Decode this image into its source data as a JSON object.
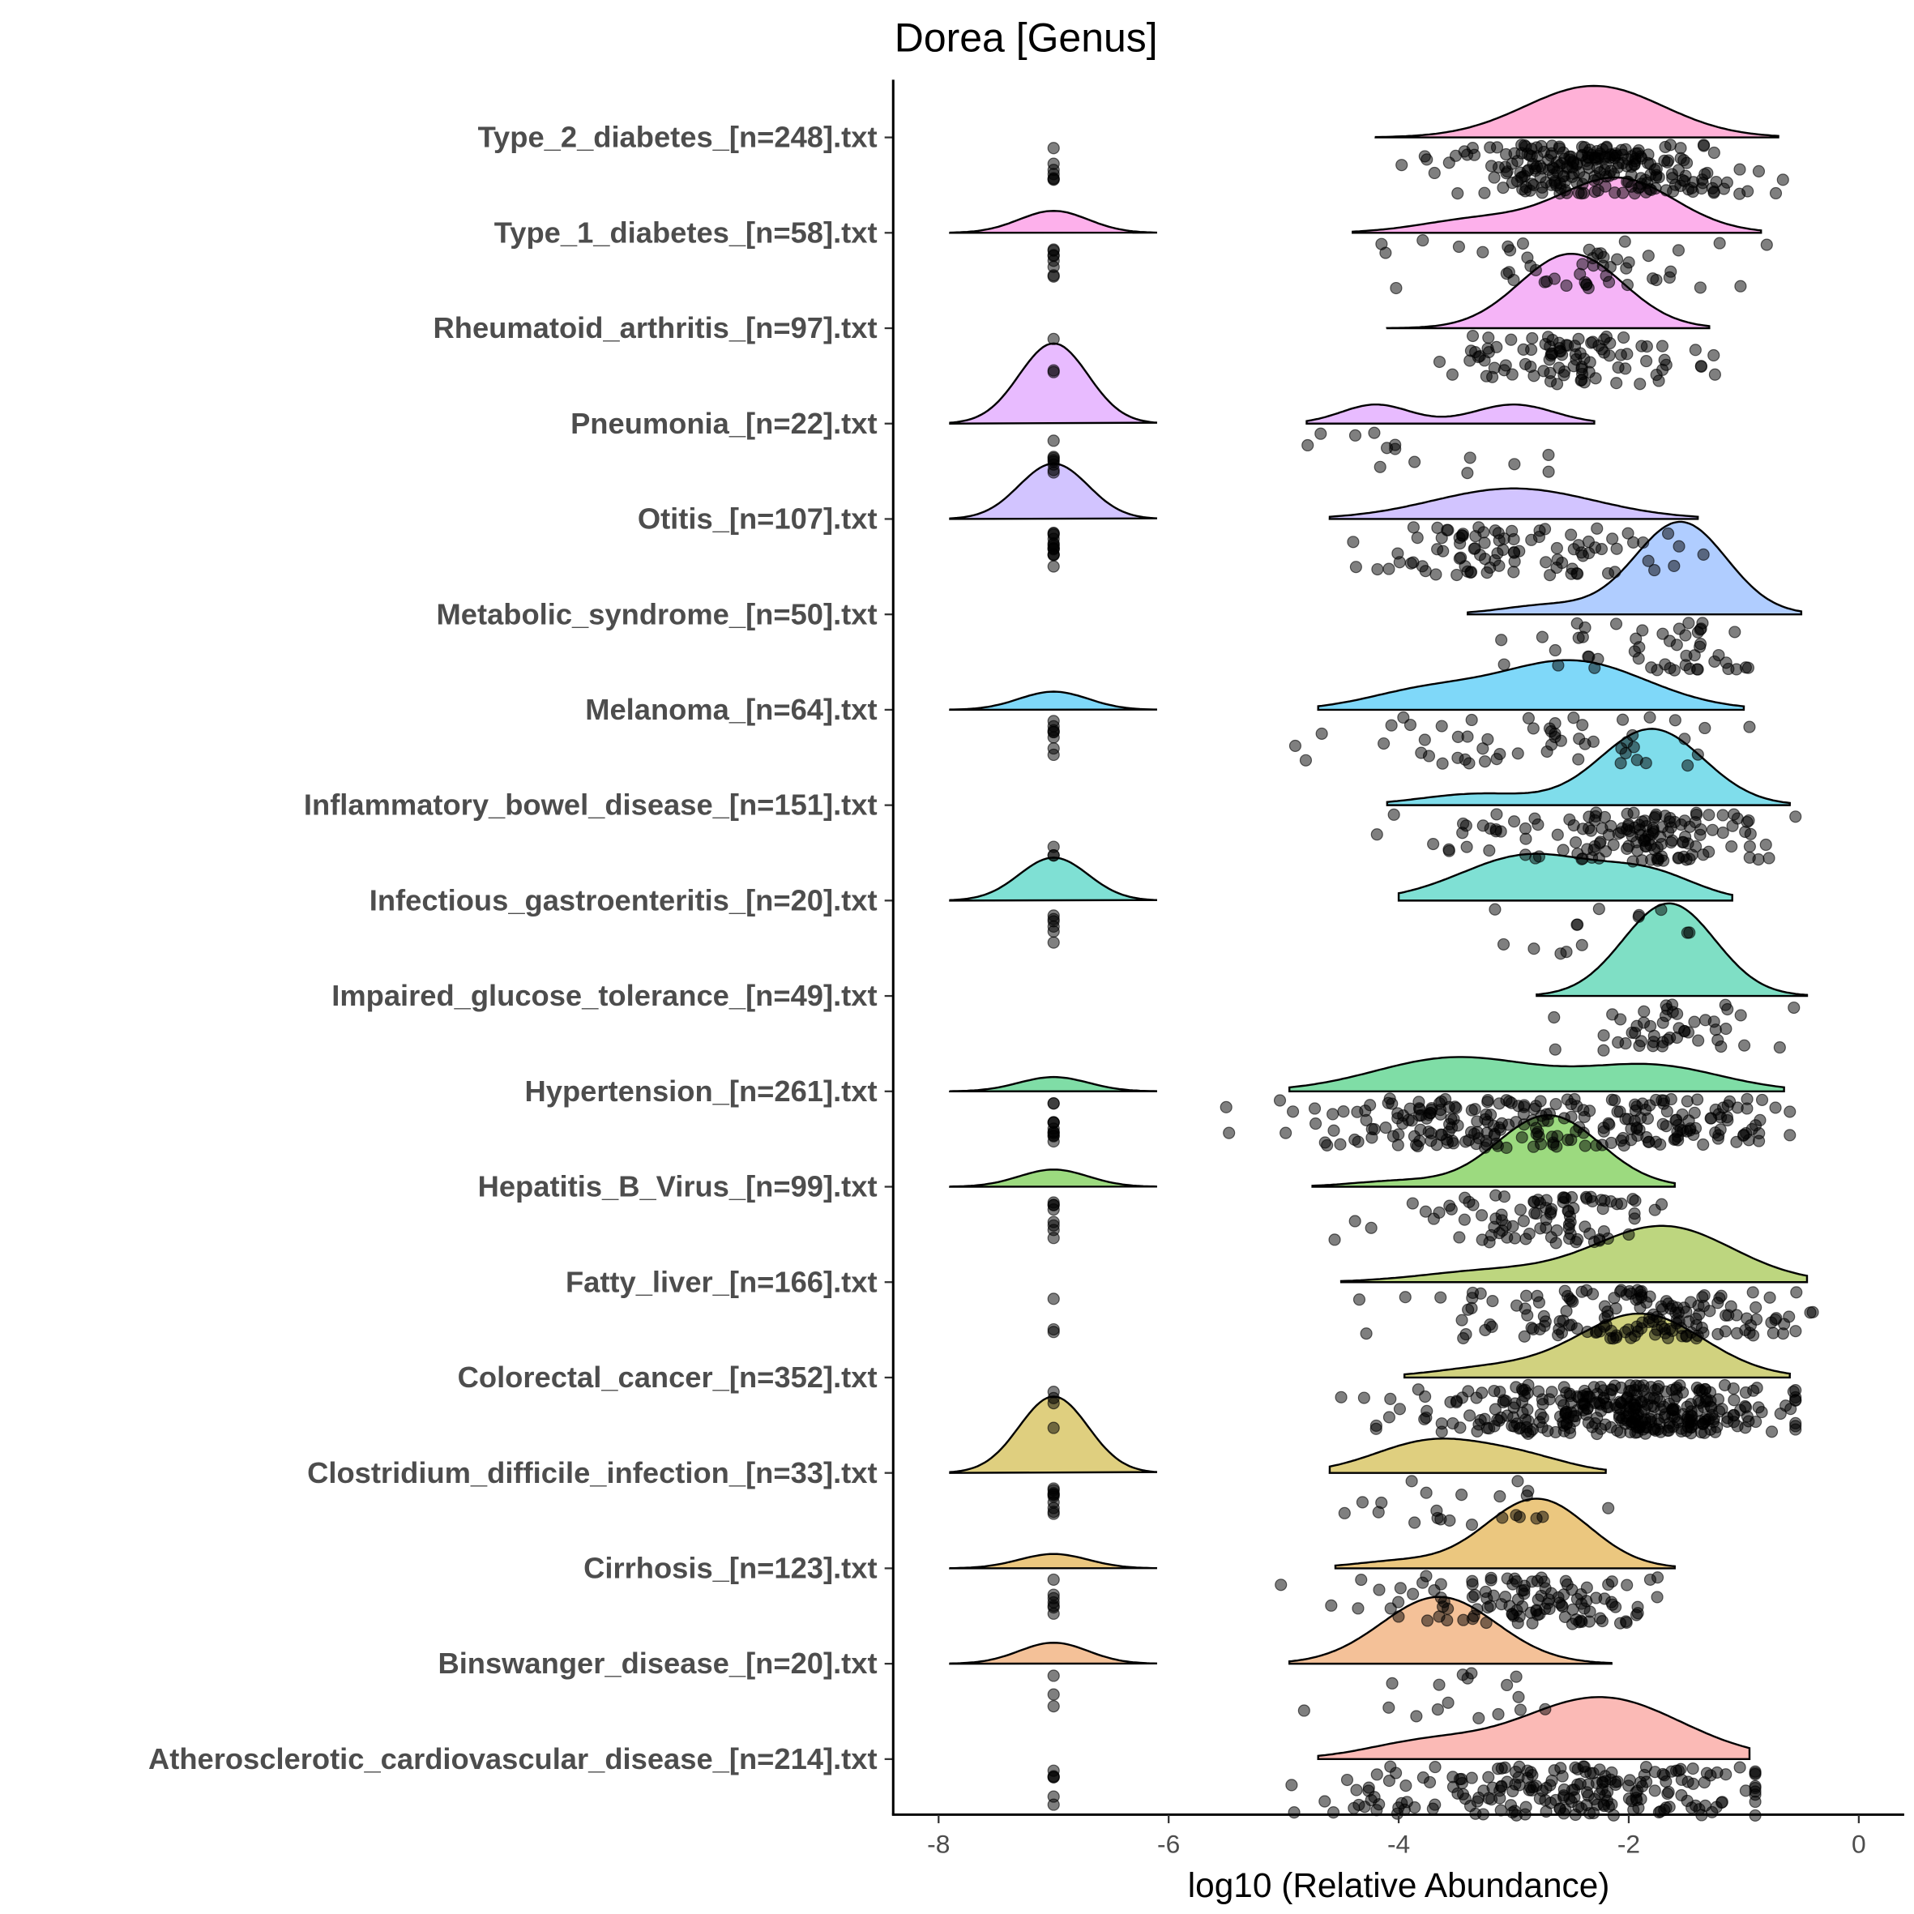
{
  "chart_data": {
    "type": "ridgeline",
    "title": "Dorea [Genus]",
    "xlabel": "log10 (Relative Abundance)",
    "ylabel": "",
    "xlim": [
      -8.4,
      0.4
    ],
    "xticks": [
      -8,
      -6,
      -4,
      -2,
      0
    ],
    "xtick_labels": [
      "-8",
      "-6",
      "-4",
      "-2",
      "0"
    ],
    "grid": false,
    "legend": "none",
    "series": [
      {
        "name": "Atherosclerotic_cardiovascular_disease_[n=214].txt",
        "n": 214,
        "n_detection_limit": 6,
        "low_peak": 0,
        "range": [
          -4.7,
          -0.95
        ],
        "peak": 0.65,
        "components": [
          [
            -2.25,
            0.7,
            1
          ],
          [
            -3.8,
            0.5,
            0.25
          ]
        ],
        "color": "#F8766D"
      },
      {
        "name": "Binswanger_disease_[n=20].txt",
        "n": 20,
        "n_detection_limit": 3,
        "low_peak": 0.22,
        "range": [
          -4.95,
          -2.15
        ],
        "peak": 0.7,
        "components": [
          [
            -3.65,
            0.5,
            1
          ]
        ],
        "color": "#EA8331"
      },
      {
        "name": "Cirrhosis_[n=123].txt",
        "n": 123,
        "n_detection_limit": 7,
        "low_peak": 0.15,
        "range": [
          -4.55,
          -1.6
        ],
        "peak": 0.73,
        "components": [
          [
            -2.8,
            0.45,
            1
          ],
          [
            -4,
            0.4,
            0.1
          ]
        ],
        "color": "#D89000"
      },
      {
        "name": "Clostridium_difficile_infection_[n=33].txt",
        "n": 33,
        "n_detection_limit": 10,
        "low_peak": 0.8,
        "range": [
          -4.6,
          -2.2
        ],
        "peak": 0.36,
        "components": [
          [
            -3.7,
            0.5,
            1
          ],
          [
            -2.9,
            0.4,
            0.4
          ]
        ],
        "color": "#BFA000"
      },
      {
        "name": "Colorectal_cancer_[n=352].txt",
        "n": 352,
        "n_detection_limit": 4,
        "low_peak": 0,
        "range": [
          -3.95,
          -0.6
        ],
        "peak": 0.67,
        "components": [
          [
            -1.9,
            0.55,
            1
          ],
          [
            -3.2,
            0.5,
            0.15
          ]
        ],
        "color": "#A3A500"
      },
      {
        "name": "Fatty_liver_[n=166].txt",
        "n": 166,
        "n_detection_limit": 3,
        "low_peak": 0,
        "range": [
          -4.5,
          -0.45
        ],
        "peak": 0.59,
        "components": [
          [
            -1.7,
            0.6,
            1
          ],
          [
            -3.2,
            0.6,
            0.2
          ]
        ],
        "color": "#7CAE00"
      },
      {
        "name": "Hepatitis_B_Virus_[n=99].txt",
        "n": 99,
        "n_detection_limit": 8,
        "low_peak": 0.18,
        "range": [
          -4.75,
          -1.6
        ],
        "peak": 0.75,
        "components": [
          [
            -2.7,
            0.45,
            1
          ],
          [
            -4,
            0.4,
            0.08
          ]
        ],
        "color": "#39B600"
      },
      {
        "name": "Hypertension_[n=261].txt",
        "n": 261,
        "n_detection_limit": 12,
        "low_peak": 0.15,
        "range": [
          -4.95,
          -0.65
        ],
        "peak": 0.36,
        "components": [
          [
            -3.5,
            0.7,
            1
          ],
          [
            -1.8,
            0.6,
            0.75
          ]
        ],
        "color": "#00BB4E"
      },
      {
        "name": "Impaired_glucose_tolerance_[n=49].txt",
        "n": 49,
        "n_detection_limit": 0,
        "low_peak": 0,
        "range": [
          -2.8,
          -0.45
        ],
        "peak": 0.97,
        "components": [
          [
            -1.65,
            0.4,
            1
          ]
        ],
        "color": "#00C08B"
      },
      {
        "name": "Infectious_gastroenteritis_[n=20].txt",
        "n": 20,
        "n_detection_limit": 6,
        "low_peak": 0.45,
        "range": [
          -4.0,
          -1.1
        ],
        "peak": 0.49,
        "components": [
          [
            -2.85,
            0.6,
            1
          ],
          [
            -1.8,
            0.4,
            0.5
          ]
        ],
        "color": "#00C1A9"
      },
      {
        "name": "Inflammatory_bowel_disease_[n=151].txt",
        "n": 151,
        "n_detection_limit": 3,
        "low_peak": 0,
        "range": [
          -4.1,
          -0.6
        ],
        "peak": 0.8,
        "components": [
          [
            -1.8,
            0.45,
            1
          ],
          [
            -3.3,
            0.5,
            0.15
          ]
        ],
        "color": "#00BCD8"
      },
      {
        "name": "Melanoma_[n=64].txt",
        "n": 64,
        "n_detection_limit": 8,
        "low_peak": 0.19,
        "range": [
          -4.7,
          -1.0
        ],
        "peak": 0.52,
        "components": [
          [
            -2.5,
            0.65,
            1
          ],
          [
            -3.8,
            0.5,
            0.35
          ]
        ],
        "color": "#00B2F3"
      },
      {
        "name": "Metabolic_syndrome_[n=50].txt",
        "n": 50,
        "n_detection_limit": 0,
        "low_peak": 0,
        "range": [
          -3.4,
          -0.5
        ],
        "peak": 0.97,
        "components": [
          [
            -1.55,
            0.4,
            1
          ],
          [
            -2.7,
            0.4,
            0.1
          ]
        ],
        "color": "#619CFF"
      },
      {
        "name": "Otitis_[n=107].txt",
        "n": 107,
        "n_detection_limit": 14,
        "low_peak": 0.58,
        "range": [
          -4.6,
          -1.4
        ],
        "peak": 0.32,
        "components": [
          [
            -3.0,
            0.7,
            1
          ]
        ],
        "color": "#A58AFF"
      },
      {
        "name": "Pneumonia_[n=22].txt",
        "n": 22,
        "n_detection_limit": 8,
        "low_peak": 0.84,
        "range": [
          -4.8,
          -2.3
        ],
        "peak": 0.2,
        "components": [
          [
            -4.2,
            0.3,
            1
          ],
          [
            -3.0,
            0.35,
            1
          ]
        ],
        "color": "#D277FF"
      },
      {
        "name": "Rheumatoid_arthritis_[n=97].txt",
        "n": 97,
        "n_detection_limit": 3,
        "low_peak": 0,
        "range": [
          -4.1,
          -1.3
        ],
        "peak": 0.78,
        "components": [
          [
            -2.5,
            0.45,
            1
          ]
        ],
        "color": "#EC69EF"
      },
      {
        "name": "Type_1_diabetes_[n=58].txt",
        "n": 58,
        "n_detection_limit": 8,
        "low_peak": 0.23,
        "range": [
          -4.4,
          -0.85
        ],
        "peak": 0.58,
        "components": [
          [
            -2.1,
            0.5,
            1
          ],
          [
            -3.3,
            0.5,
            0.25
          ]
        ],
        "color": "#FB61D7"
      },
      {
        "name": "Type_2_diabetes_[n=248].txt",
        "n": 248,
        "n_detection_limit": 7,
        "low_peak": 0,
        "range": [
          -4.2,
          -0.7
        ],
        "peak": 0.54,
        "components": [
          [
            -2.3,
            0.6,
            1
          ]
        ],
        "color": "#FF64B0"
      }
    ]
  }
}
